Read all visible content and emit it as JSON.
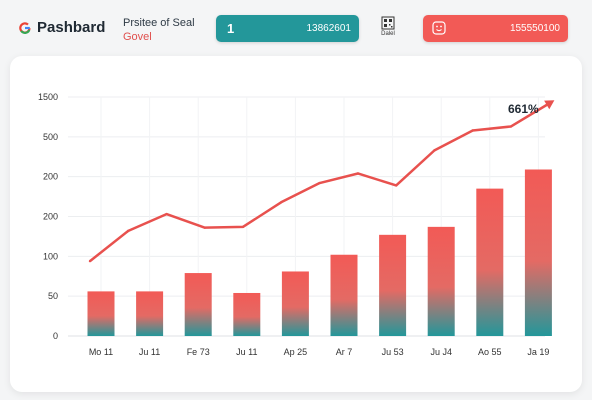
{
  "header": {
    "brand": "Pashbard",
    "subtitle_line1": "Prsitee of Seal",
    "subtitle_line2": "Govel",
    "metric_teal": {
      "left": "1",
      "right": "13862601"
    },
    "qr_label": "Dalel",
    "metric_red": {
      "right": "155550100"
    }
  },
  "colors": {
    "accent_red": "#f25a56",
    "accent_teal": "#23979a",
    "line": "#e8514e"
  },
  "icons": {
    "brand": "g-logo-icon",
    "qr": "qr-code-icon",
    "red_card": "smiley-icon"
  },
  "chart_data": {
    "type": "bar",
    "y_tick_labels": [
      "0",
      "50",
      "100",
      "200",
      "200",
      "500",
      "1500"
    ],
    "categories": [
      "Mo 11",
      "Ju 11",
      "Fe 73",
      "Ju 11",
      "Ap 25",
      "Ar 7",
      "Ju 53",
      "Ju J4",
      "Ao 55",
      "Ja 19"
    ],
    "bars": [
      56,
      56,
      79,
      54,
      81,
      102,
      127,
      137,
      185,
      209
    ],
    "line": [
      94,
      132,
      153,
      136,
      137,
      168,
      192,
      204,
      189,
      233,
      258,
      263,
      292
    ],
    "line_x": [
      0.5,
      1.0,
      1.5,
      2.0,
      2.5,
      3.0,
      3.5,
      4.0,
      4.5,
      5.0,
      5.5,
      6.0,
      6.5
    ],
    "grid": true,
    "annotation": "661%"
  }
}
